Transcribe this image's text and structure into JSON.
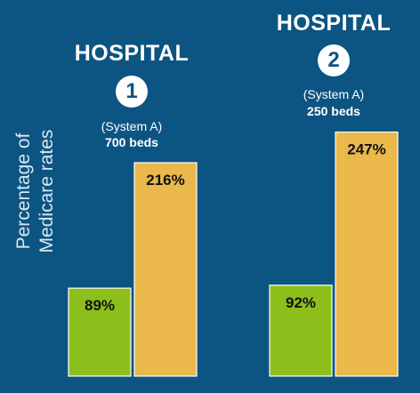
{
  "ylabel_line1": "Percentage of",
  "ylabel_line2": "Medicare rates",
  "hospitals": [
    {
      "title": "HOSPITAL",
      "number": "1",
      "system": "(System A)",
      "beds": "700 beds"
    },
    {
      "title": "HOSPITAL",
      "number": "2",
      "system": "(System A)",
      "beds": "250 beds"
    }
  ],
  "colors": {
    "background": "#0c5582",
    "green": "#8cbf1c",
    "gold": "#eab84b"
  },
  "chart_data": {
    "type": "bar",
    "categories": [
      "HOSPITAL 1",
      "HOSPITAL 2"
    ],
    "series": [
      {
        "values": [
          89,
          92
        ],
        "labels": [
          "89%",
          "92%"
        ],
        "color": "#8cbf1c"
      },
      {
        "values": [
          216,
          247
        ],
        "labels": [
          "216%",
          "247%"
        ],
        "color": "#eab84b"
      }
    ],
    "ylabel": "Percentage of Medicare rates",
    "ylim": [
      0,
      260
    ],
    "grid": false
  }
}
